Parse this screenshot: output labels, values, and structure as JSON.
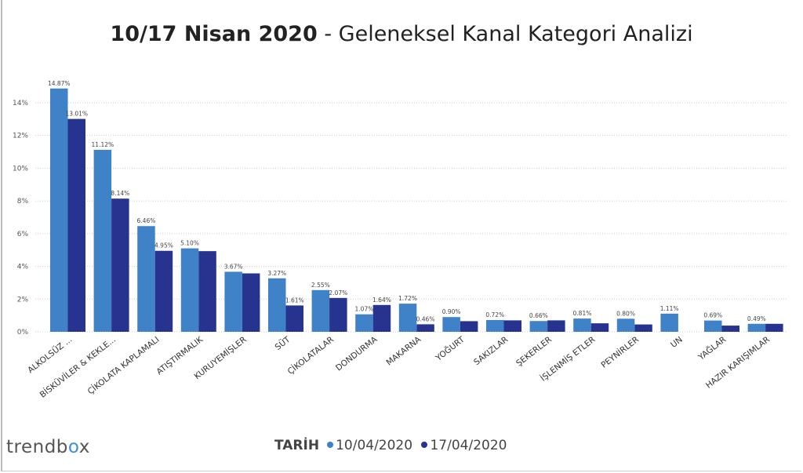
{
  "header": {
    "title_bold": "10/17 Nisan 2020",
    "title_rest": " - Geleneksel Kanal Kategori Analizi"
  },
  "logo": {
    "text_a": "trendb",
    "text_o": "o",
    "text_b": "x"
  },
  "legend": {
    "title": "TARİH",
    "items": [
      "10/04/2020",
      "17/04/2020"
    ]
  },
  "colors": {
    "series1": "#3f82c8",
    "series2": "#27348f"
  },
  "chart_data": {
    "type": "bar",
    "title": "10/17 Nisan 2020 - Geleneksel Kanal Kategori Analizi",
    "ylim": [
      0,
      15.5
    ],
    "yticks": [
      "0%",
      "2%",
      "4%",
      "6%",
      "8%",
      "10%",
      "12%",
      "14%"
    ],
    "grid": true,
    "legend_placement": "bottom",
    "categories": [
      "ALKOLSÜZ ...",
      "BİSKÜVİLER & KEKLE...",
      "ÇİKOLATA KAPLAMALI",
      "ATIŞTIRMALIK",
      "KURUYEMİŞLER",
      "SÜT",
      "ÇİKOLATALAR",
      "DONDURMA",
      "MAKARNA",
      "YOĞURT",
      "SAKIZLAR",
      "ŞEKERLER",
      "İŞLENMİŞ ETLER",
      "PEYNİRLER",
      "UN",
      "YAĞLAR",
      "HAZIR KARIŞIMLAR"
    ],
    "series": [
      {
        "name": "10/04/2020",
        "values": [
          14.87,
          11.12,
          6.46,
          5.1,
          3.67,
          3.27,
          2.55,
          1.07,
          1.72,
          0.9,
          0.72,
          0.66,
          0.81,
          0.8,
          1.11,
          0.69,
          0.49
        ],
        "labels": [
          "14.87%",
          "11.12%",
          "6.46%",
          "5.10%",
          "3.67%",
          "3.27%",
          "2.55%",
          "1.07%",
          "1.72%",
          "0.90%",
          "0.72%",
          "0.66%",
          "0.81%",
          "0.80%",
          "1.11%",
          "0.69%",
          "0.49%"
        ]
      },
      {
        "name": "17/04/2020",
        "values": [
          13.01,
          8.14,
          4.95,
          4.93,
          3.57,
          1.61,
          2.07,
          1.64,
          0.46,
          0.65,
          0.7,
          0.7,
          0.52,
          0.45,
          null,
          0.38,
          0.49
        ],
        "labels": [
          "13.01%",
          "8.14%",
          "4.95%",
          "",
          "",
          "1.61%",
          "2.07%",
          "1.64%",
          "0.46%",
          "",
          "",
          "",
          "",
          "",
          "",
          "",
          ""
        ]
      }
    ]
  }
}
